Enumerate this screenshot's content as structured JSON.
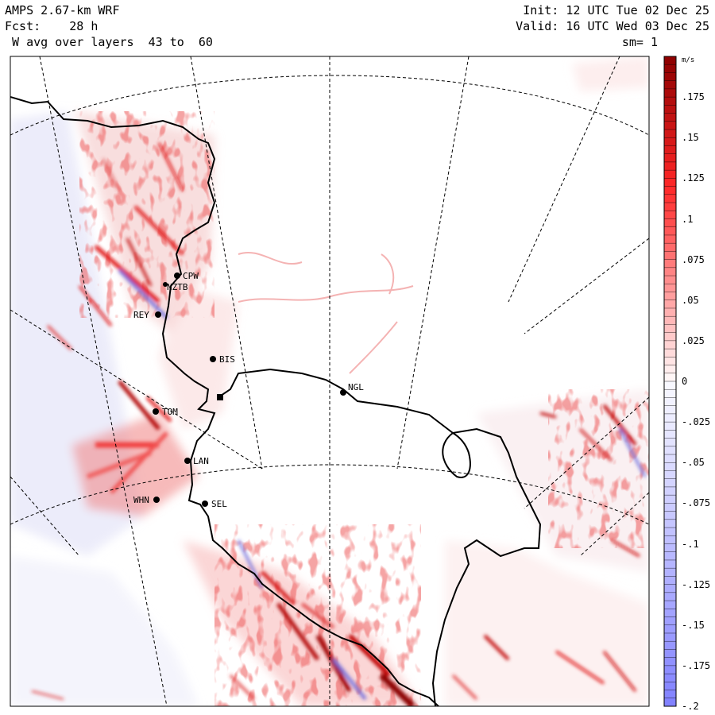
{
  "header": {
    "model": "AMPS 2.67-km WRF",
    "forecast": "Fcst:    28 h",
    "field": " W avg over layers  43 to  60",
    "init": "Init: 12 UTC Tue 02 Dec 25",
    "valid": "Valid: 16 UTC Wed 03 Dec 25",
    "smoothing": "sm= 1"
  },
  "colorbar": {
    "units": "m/s",
    "ticks": [
      ".175",
      ".15",
      ".125",
      ".1",
      ".075",
      ".05",
      ".025",
      "0",
      "-.025",
      "-.05",
      "-.075",
      "-.1",
      "-.125",
      "-.15",
      "-.175",
      "-.2"
    ],
    "min": -0.2,
    "max": 0.2,
    "colors": {
      "positive_max": "#8b0000",
      "positive_mid": "#ff3030",
      "zero": "#ffffff",
      "negative_min": "#8080ff"
    }
  },
  "stations": [
    {
      "id": "CPW"
    },
    {
      "id": "NZTB"
    },
    {
      "id": "REY"
    },
    {
      "id": "BIS"
    },
    {
      "id": "TOM"
    },
    {
      "id": "NGL"
    },
    {
      "id": "LAN"
    },
    {
      "id": "WHN"
    },
    {
      "id": "SEL"
    }
  ]
}
